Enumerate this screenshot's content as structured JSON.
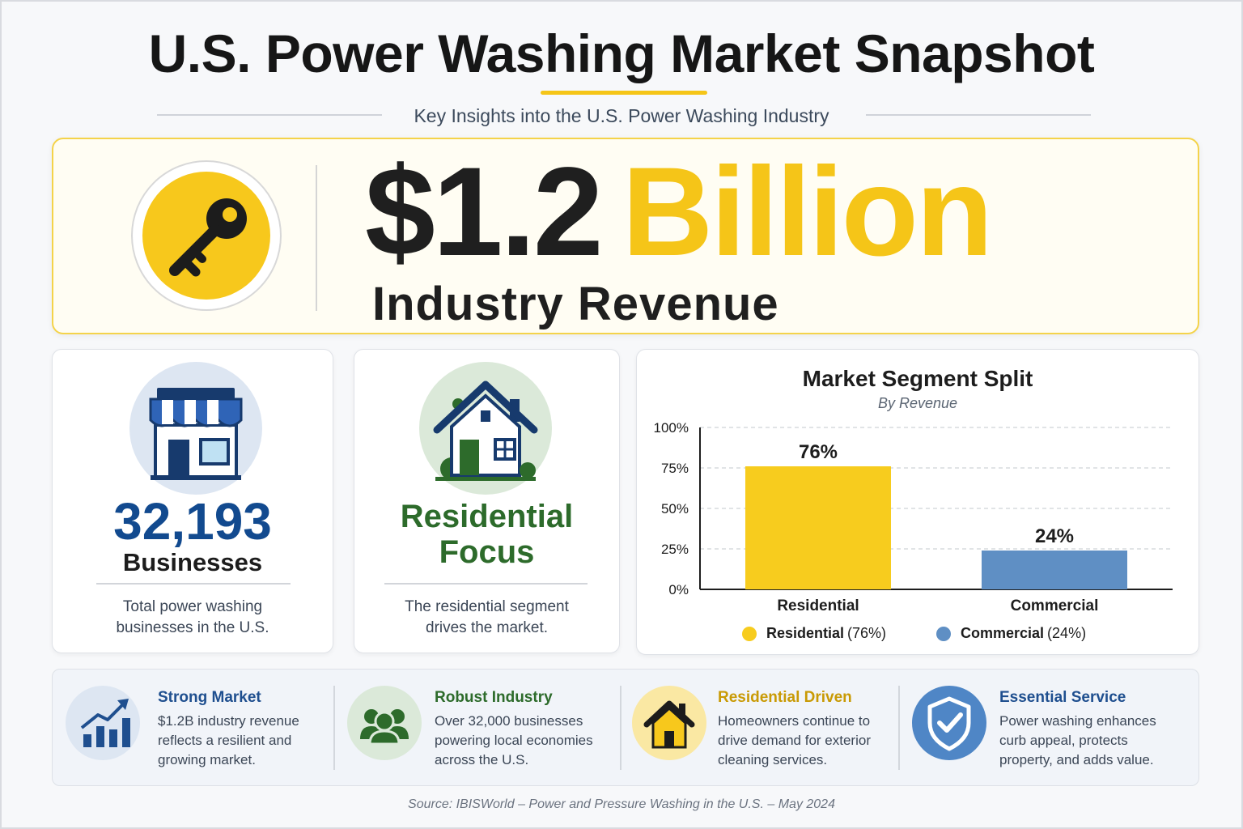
{
  "header": {
    "title": "U.S. Power Washing Market Snapshot",
    "subtitle": "Key Insights into the U.S. Power Washing Industry"
  },
  "hero": {
    "amount": "$1.2",
    "unit": "Billion",
    "label": "Industry Revenue",
    "icon": "key-icon"
  },
  "businesses_card": {
    "icon": "storefront-icon",
    "value": "32,193",
    "label": "Businesses",
    "desc_line1": "Total power washing",
    "desc_line2": "businesses in the U.S."
  },
  "residential_card": {
    "icon": "house-icon",
    "title_line1": "Residential",
    "title_line2": "Focus",
    "desc_line1": "The residential segment",
    "desc_line2": "drives the market."
  },
  "chart_data": {
    "type": "bar",
    "title": "Market Segment Split",
    "subtitle": "By Revenue",
    "categories": [
      "Residential",
      "Commercial"
    ],
    "values": [
      76,
      24
    ],
    "value_labels": [
      "76%",
      "24%"
    ],
    "colors": [
      "#f7cc1e",
      "#5f8fc4"
    ],
    "ylim": [
      0,
      100
    ],
    "y_ticks": [
      "0%",
      "25%",
      "50%",
      "75%",
      "100%"
    ],
    "grid": true,
    "legend": [
      {
        "name": "Residential",
        "pct": "(76%)",
        "color": "#f7cc1e"
      },
      {
        "name": "Commercial",
        "pct": "(24%)",
        "color": "#5f8fc4"
      }
    ],
    "legend_position": "bottom"
  },
  "features": [
    {
      "icon": "growth-chart-icon",
      "title": "Strong Market",
      "title_color": "#1f4f8f",
      "circle": "#dde6f2",
      "lines": [
        "$1.2B industry revenue",
        "reflects a resilient and",
        "growing market."
      ]
    },
    {
      "icon": "people-group-icon",
      "title": "Robust Industry",
      "title_color": "#2d6b2b",
      "circle": "#dbe9d9",
      "lines": [
        "Over 32,000 businesses",
        "powering local economies",
        "across the U.S."
      ]
    },
    {
      "icon": "home-icon",
      "title": "Residential Driven",
      "title_color": "#c99a05",
      "circle": "#fae8a3",
      "lines": [
        "Homeowners continue to",
        "drive demand for exterior",
        "cleaning services."
      ]
    },
    {
      "icon": "shield-check-icon",
      "title": "Essential Service",
      "title_color": "#1f4f8f",
      "circle": "#4f86c6",
      "lines": [
        "Power washing enhances",
        "curb appeal, protects",
        "property, and adds value."
      ]
    }
  ],
  "source": "Source: IBISWorld – Power and Pressure Washing in the U.S. – May 2024"
}
